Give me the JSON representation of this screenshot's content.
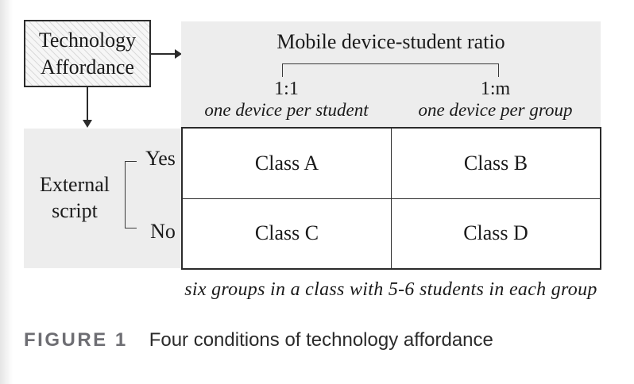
{
  "figure": {
    "affordance_box": {
      "line1": "Technology",
      "line2": "Affordance"
    },
    "column_header": {
      "title": "Mobile device-student ratio",
      "columns": [
        {
          "ratio": "1:1",
          "description": "one device per student"
        },
        {
          "ratio": "1:m",
          "description": "one device per group"
        }
      ]
    },
    "row_header": {
      "label_line1": "External",
      "label_line2": "script",
      "options": [
        {
          "label": "Yes"
        },
        {
          "label": "No"
        }
      ]
    },
    "matrix": {
      "cells": [
        [
          "Class A",
          "Class B"
        ],
        [
          "Class C",
          "Class D"
        ]
      ]
    },
    "footnote": "six groups in a class with 5-6 students in each group",
    "caption": {
      "label": "FIGURE 1",
      "text": "Four conditions of technology affordance"
    }
  },
  "colors": {
    "panel_gray": "#ededed",
    "border_dark": "#2b2b2b",
    "caption_label_gray": "#6e6e73",
    "text": "#1a1a1a"
  }
}
